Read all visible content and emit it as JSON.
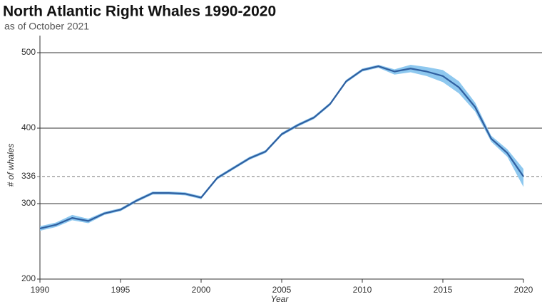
{
  "chart_data": {
    "type": "line",
    "title": "North Atlantic Right Whales 1990-2020",
    "subtitle": "as of October 2021",
    "x_label": "Year",
    "y_label": "# of whales",
    "x": [
      1990,
      1991,
      1992,
      1993,
      1994,
      1995,
      1996,
      1997,
      1998,
      1999,
      2000,
      2001,
      2002,
      2003,
      2004,
      2005,
      2006,
      2007,
      2008,
      2009,
      2010,
      2011,
      2012,
      2013,
      2014,
      2015,
      2016,
      2017,
      2018,
      2019,
      2020
    ],
    "series": [
      {
        "color": "#2f5fa0",
        "band_color": "#8ec8ef",
        "values": [
          267,
          272,
          281,
          277,
          287,
          292,
          304,
          314,
          314,
          313,
          308,
          334,
          347,
          360,
          369,
          392,
          404,
          414,
          432,
          462,
          477,
          482,
          475,
          479,
          475,
          469,
          454,
          428,
          386,
          367,
          336
        ],
        "band_lower": [
          264,
          269,
          278,
          274,
          285,
          290,
          302,
          312,
          312,
          311,
          306,
          332,
          345,
          358,
          367,
          390,
          402,
          412,
          430,
          460,
          475,
          480,
          471,
          474,
          469,
          461,
          446,
          422,
          382,
          362,
          322
        ],
        "band_upper": [
          270,
          275,
          285,
          280,
          289,
          294,
          306,
          316,
          316,
          315,
          310,
          336,
          349,
          362,
          371,
          394,
          406,
          416,
          434,
          464,
          479,
          484,
          478,
          484,
          481,
          477,
          462,
          434,
          390,
          372,
          346
        ]
      }
    ],
    "xlim": [
      1990,
      2020
    ],
    "xticks": [
      1990,
      1995,
      2000,
      2005,
      2010,
      2015,
      2020
    ],
    "ylim": [
      200,
      500
    ],
    "yticks": [
      200,
      300,
      336,
      400,
      500
    ],
    "reference_line": 336,
    "grid": true
  }
}
